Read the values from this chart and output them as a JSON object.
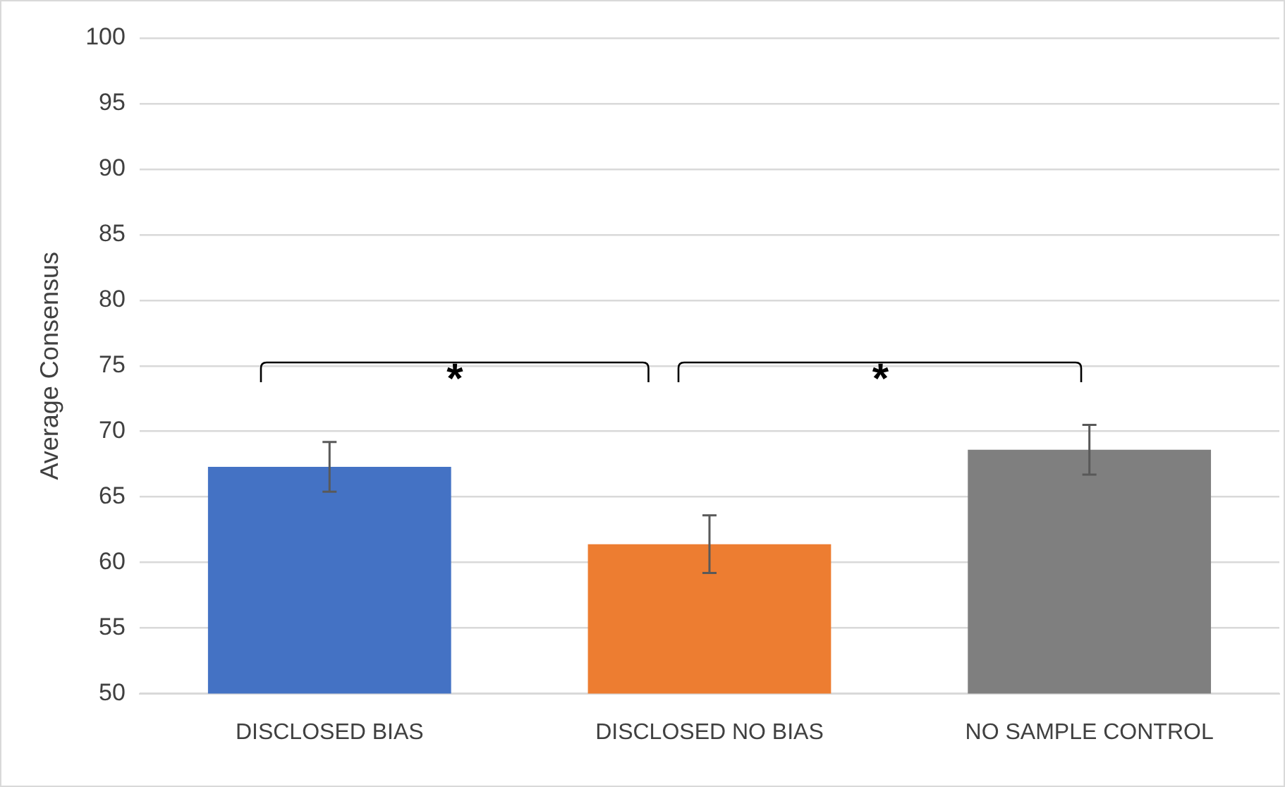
{
  "chart_data": {
    "type": "bar",
    "ylabel": "Average Consensus",
    "categories": [
      "DISCLOSED BIAS",
      "DISCLOSED NO BIAS",
      "NO SAMPLE CONTROL"
    ],
    "values": [
      67.3,
      61.4,
      68.6
    ],
    "colors": [
      "#4472c4",
      "#ed7d31",
      "#7f7f7f"
    ],
    "errors": [
      1.9,
      2.2,
      1.9
    ],
    "ylim": [
      50,
      100
    ],
    "yticks": [
      50,
      55,
      60,
      65,
      70,
      75,
      80,
      85,
      90,
      95,
      100
    ],
    "grid": "y",
    "legend": false,
    "annotations": [
      "*",
      "*"
    ]
  }
}
